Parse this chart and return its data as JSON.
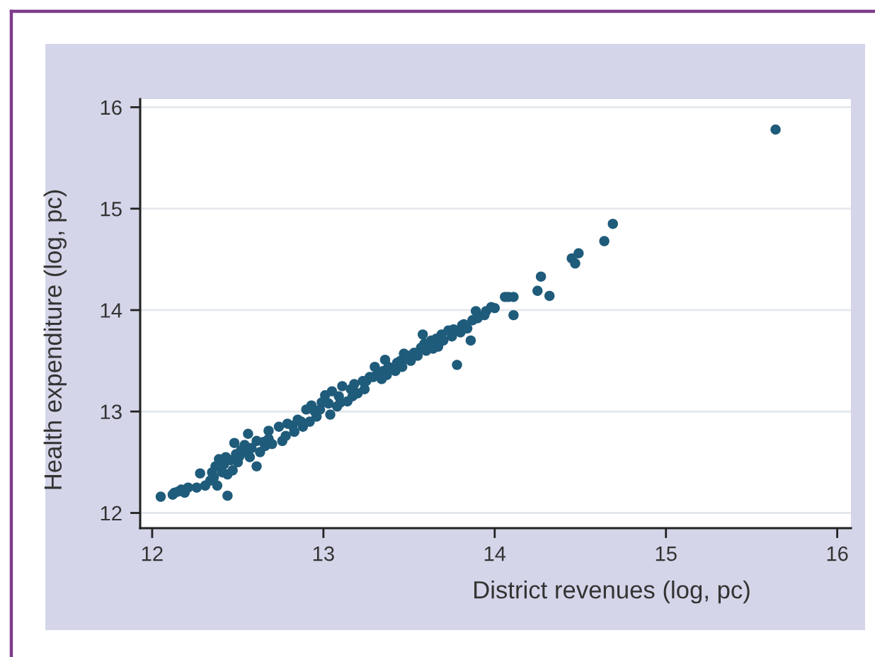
{
  "chart_data": {
    "type": "scatter",
    "xlabel": "District revenues (log, pc)",
    "ylabel": "Health expenditure (log, pc)",
    "color": "#1f5b7a",
    "marker": "circle",
    "grid": "y",
    "xlim": [
      11.93,
      16.08
    ],
    "ylim": [
      11.85,
      16.08
    ],
    "xticks": [
      12,
      13,
      14,
      15,
      16
    ],
    "yticks": [
      12,
      13,
      14,
      15,
      16
    ],
    "x": [
      15.64,
      14.69,
      14.64,
      14.49,
      14.45,
      14.47,
      14.27,
      14.25,
      14.32,
      14.08,
      14.11,
      14.11,
      13.98,
      13.95,
      13.89,
      13.87,
      13.81,
      13.86,
      13.76,
      14.06,
      13.94,
      13.78,
      13.67,
      13.69,
      13.58,
      13.59,
      13.47,
      13.36,
      13.3,
      13.27,
      13.34,
      13.23,
      13.18,
      13.11,
      13.05,
      13.01,
      12.99,
      13.04,
      12.93,
      12.9,
      12.85,
      12.79,
      12.05,
      12.13,
      12.17,
      12.21,
      12.28,
      12.37,
      12.39,
      12.43,
      12.49,
      12.48,
      12.44,
      12.44,
      12.31,
      12.61,
      12.56,
      12.54,
      12.61,
      12.68,
      12.74,
      12.76,
      12.96,
      12.38,
      12.19,
      12.12,
      12.15,
      12.26,
      12.34,
      12.35,
      12.36,
      12.41,
      12.42,
      12.46,
      12.47,
      12.5,
      12.51,
      12.52,
      12.55,
      12.57,
      12.58,
      12.63,
      12.65,
      12.66,
      12.68,
      12.7,
      12.78,
      12.82,
      12.83,
      12.87,
      12.88,
      12.92,
      12.95,
      12.98,
      13.03,
      13.08,
      13.09,
      13.1,
      13.14,
      13.16,
      13.17,
      13.2,
      13.24,
      13.25,
      13.29,
      13.32,
      13.35,
      13.37,
      13.38,
      13.42,
      13.43,
      13.45,
      13.46,
      13.48,
      13.5,
      13.51,
      13.53,
      13.55,
      13.57,
      13.6,
      13.63,
      13.64,
      13.66,
      13.7,
      13.73,
      13.75,
      13.8,
      13.82,
      13.84,
      13.9,
      14.0
    ],
    "values": [
      15.78,
      14.85,
      14.68,
      14.56,
      14.51,
      14.46,
      14.33,
      14.19,
      14.14,
      14.13,
      14.13,
      13.95,
      14.03,
      13.99,
      13.99,
      13.9,
      13.85,
      13.7,
      13.81,
      14.13,
      13.95,
      13.46,
      13.64,
      13.76,
      13.76,
      13.67,
      13.57,
      13.51,
      13.44,
      13.34,
      13.32,
      13.3,
      13.27,
      13.25,
      13.2,
      13.16,
      13.09,
      12.97,
      13.06,
      13.02,
      12.92,
      12.88,
      12.16,
      12.2,
      12.23,
      12.25,
      12.39,
      12.46,
      12.53,
      12.55,
      12.58,
      12.69,
      12.17,
      12.38,
      12.27,
      12.46,
      12.78,
      12.67,
      12.71,
      12.81,
      12.85,
      12.71,
      12.95,
      12.27,
      12.2,
      12.18,
      12.21,
      12.25,
      12.32,
      12.4,
      12.35,
      12.4,
      12.48,
      12.52,
      12.42,
      12.5,
      12.56,
      12.62,
      12.6,
      12.55,
      12.64,
      12.6,
      12.7,
      12.66,
      12.73,
      12.68,
      12.76,
      12.86,
      12.8,
      12.9,
      12.85,
      12.9,
      13.0,
      13.02,
      13.08,
      13.05,
      13.15,
      13.09,
      13.1,
      13.22,
      13.15,
      13.18,
      13.22,
      13.3,
      13.34,
      13.38,
      13.4,
      13.36,
      13.44,
      13.4,
      13.48,
      13.5,
      13.44,
      13.52,
      13.55,
      13.5,
      13.58,
      13.55,
      13.63,
      13.6,
      13.7,
      13.62,
      13.72,
      13.7,
      13.8,
      13.74,
      13.78,
      13.86,
      13.82,
      13.92,
      14.02
    ]
  }
}
